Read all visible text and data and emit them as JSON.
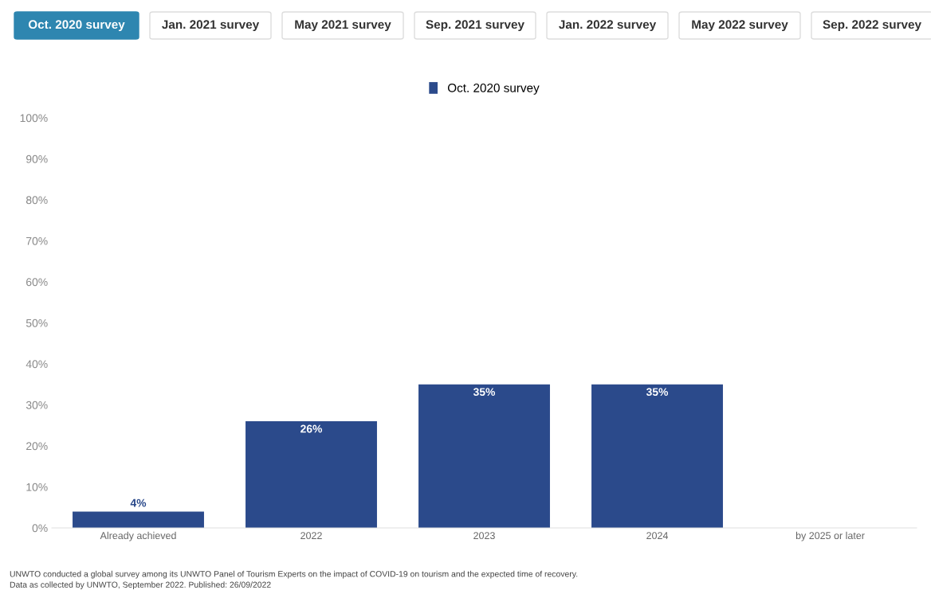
{
  "chart_data": {
    "type": "bar",
    "categories": [
      "Already achieved",
      "2022",
      "2023",
      "2024",
      "by 2025 or later"
    ],
    "series": [
      {
        "name": "Oct. 2020 survey",
        "color": "#2b4a8b",
        "values": [
          4,
          26,
          35,
          35,
          0
        ]
      }
    ],
    "value_labels": [
      "4%",
      "26%",
      "35%",
      "35%",
      null
    ],
    "ylim": [
      0,
      100
    ],
    "yticks": [
      {
        "value": 0,
        "label": "0%"
      },
      {
        "value": 10,
        "label": "10%"
      },
      {
        "value": 20,
        "label": "20%"
      },
      {
        "value": 30,
        "label": "30%"
      },
      {
        "value": 40,
        "label": "40%"
      },
      {
        "value": 50,
        "label": "50%"
      },
      {
        "value": 60,
        "label": "60%"
      },
      {
        "value": 70,
        "label": "70%"
      },
      {
        "value": 80,
        "label": "80%"
      },
      {
        "value": 90,
        "label": "90%"
      },
      {
        "value": 100,
        "label": "100%"
      }
    ],
    "legend": "top",
    "annotations": [
      "Oct. 2020 survey",
      "Jan. 2021 survey",
      "May 2021 survey",
      "Sep. 2021 survey",
      "Jan. 2022 survey",
      "May 2022 survey",
      "Sep. 2022 survey",
      "UNWTO conducted a global survey among its UNWTO Panel of Tourism Experts on the impact of COVID-19 on tourism and the expected time of recovery.\nData as collected by UNWTO, September 2022. Published: 26/09/2022"
    ]
  }
}
